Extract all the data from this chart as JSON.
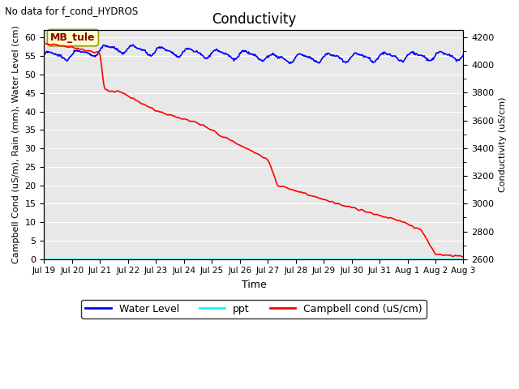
{
  "title": "Conductivity",
  "top_left_text": "No data for f_cond_HYDROS",
  "ylabel_left": "Campbell Cond (uS/m), Rain (mm), Water Level (cm)",
  "ylabel_right": "Conductivity (uS/cm)",
  "xlabel": "Time",
  "ylim_left": [
    0,
    62
  ],
  "ylim_right": [
    2600,
    4250
  ],
  "background_color": "#e8e8e8",
  "mb_tule_label": "MB_tule",
  "xtick_labels": [
    "Jul 19",
    "Jul 20",
    "Jul 21",
    "Jul 22",
    "Jul 23",
    "Jul 24",
    "Jul 25",
    "Jul 26",
    "Jul 27",
    "Jul 28",
    "Jul 29",
    "Jul 30",
    "Jul 31",
    "Aug 1",
    "Aug 2",
    "Aug 3"
  ],
  "yticks_left": [
    0,
    5,
    10,
    15,
    20,
    25,
    30,
    35,
    40,
    45,
    50,
    55,
    60
  ],
  "yticks_right": [
    2600,
    2800,
    3000,
    3200,
    3400,
    3600,
    3800,
    4000,
    4200
  ],
  "wl_color": "#0000ff",
  "ppt_color": "#00ffff",
  "campbell_color": "#ff0000",
  "fig_bg": "#ffffff",
  "plot_bg": "#e8e8e8"
}
